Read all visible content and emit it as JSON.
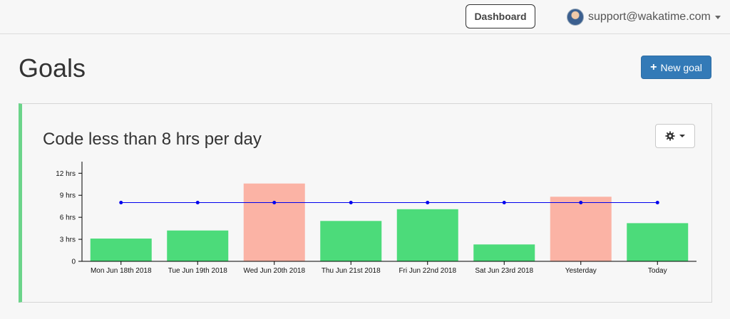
{
  "header": {
    "dashboard_label": "Dashboard",
    "user_email": "support@wakatime.com"
  },
  "page": {
    "title": "Goals",
    "new_goal_label": "New goal"
  },
  "goal": {
    "title": "Code less than 8 hrs per day"
  },
  "colors": {
    "met": "#4cdb7a",
    "missed": "#fbb3a5",
    "target_line": "#0000ee",
    "accent_border": "#6bd48a",
    "primary": "#337ab7"
  },
  "chart_data": {
    "type": "bar",
    "categories": [
      "Mon Jun 18th 2018",
      "Tue Jun 19th 2018",
      "Wed Jun 20th 2018",
      "Thu Jun 21st 2018",
      "Fri Jun 22nd 2018",
      "Sat Jun 23rd 2018",
      "Yesterday",
      "Today"
    ],
    "values": [
      3.1,
      4.2,
      10.6,
      5.5,
      7.1,
      2.3,
      8.8,
      5.2
    ],
    "status": [
      "met",
      "met",
      "missed",
      "met",
      "met",
      "met",
      "missed",
      "met"
    ],
    "target": 8,
    "ylim": [
      0,
      13
    ],
    "yticks": [
      0,
      3,
      6,
      9,
      12
    ],
    "ytick_labels": [
      "0",
      "3 hrs",
      "6 hrs",
      "9 hrs",
      "12 hrs"
    ],
    "grid": false
  }
}
